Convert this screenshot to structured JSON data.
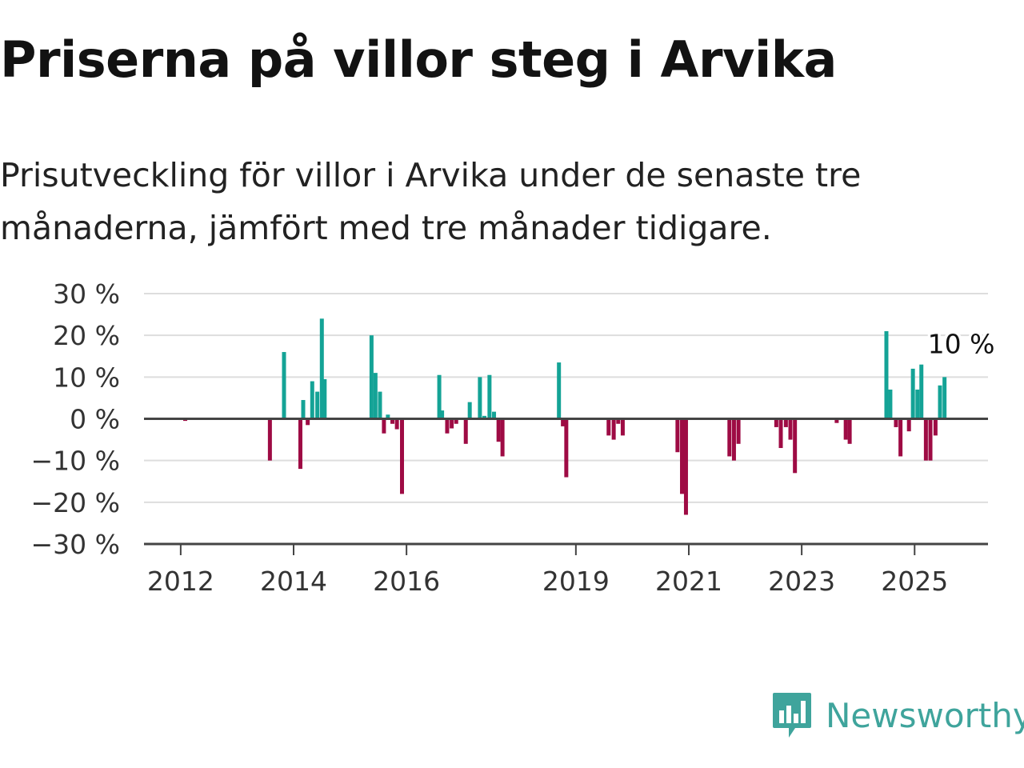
{
  "title": "Priserna på villor steg i Arvika",
  "subtitle": "Prisutveckling för villor i Arvika under de senaste tre månaderna, jämfört med tre månader tidigare.",
  "brand": "Newsworthy",
  "colors": {
    "positive": "#14a396",
    "negative": "#9e0b44",
    "brand": "#3fa49c",
    "axis": "#444444",
    "grid": "#dddddd"
  },
  "chart_data": {
    "type": "bar",
    "ylim": [
      -30,
      30
    ],
    "y_ticks": [
      "30 %",
      "20 %",
      "10 %",
      "0 %",
      "−10 %",
      "−20 %",
      "−30 %"
    ],
    "y_tick_values": [
      30,
      20,
      10,
      0,
      -10,
      -20,
      -30
    ],
    "x_ticks": [
      "2012",
      "2014",
      "2016",
      "2019",
      "2021",
      "2023",
      "2025"
    ],
    "x_tick_values": [
      2012,
      2014,
      2016,
      2019,
      2021,
      2023,
      2025
    ],
    "xlim": [
      2011.35,
      2026.3
    ],
    "grid": true,
    "annotation": {
      "text": "10 %",
      "x": 2025.6,
      "y": 10
    },
    "series": [
      {
        "x": [
          2012.08,
          2013.58,
          2013.83,
          2014.12,
          2014.17,
          2014.25,
          2014.33,
          2014.42,
          2014.5,
          2014.55,
          2014.62,
          2015.38,
          2015.45,
          2015.53,
          2015.6,
          2015.67,
          2015.75,
          2015.83,
          2015.92,
          2016.58,
          2016.63,
          2016.72,
          2016.8,
          2016.88,
          2017.05,
          2017.12,
          2017.3,
          2017.38,
          2017.47,
          2017.55,
          2017.63,
          2017.7,
          2018.7,
          2018.77,
          2018.83,
          2019.58,
          2019.67,
          2019.75,
          2019.83,
          2020.8,
          2020.88,
          2020.95,
          2021.72,
          2021.8,
          2021.88,
          2022.55,
          2022.63,
          2022.72,
          2022.8,
          2022.88,
          2023.62,
          2023.78,
          2023.85,
          2024.5,
          2024.57,
          2024.67,
          2024.75,
          2024.9,
          2024.97,
          2025.05,
          2025.12,
          2025.2,
          2025.28,
          2025.37,
          2025.45,
          2025.53
        ],
        "values": [
          -0.5,
          -10,
          16,
          -12,
          4.5,
          -1.5,
          9,
          6.5,
          24,
          9.5,
          0,
          20,
          11,
          6.5,
          -3.5,
          1,
          -1.2,
          -2.5,
          -18,
          10.5,
          2,
          -3.5,
          -2.3,
          -1.2,
          -6,
          4,
          10,
          0.7,
          10.5,
          1.7,
          -5.5,
          -9,
          13.5,
          -1.8,
          -14,
          -4,
          -5,
          -1.2,
          -4,
          -8,
          -18,
          -23,
          -9,
          -10,
          -6,
          -2,
          -7,
          -2,
          -5,
          -13,
          -1,
          -5,
          -6,
          21,
          7,
          -2,
          -9,
          -3,
          12,
          7,
          13,
          -10,
          -10,
          -4,
          8,
          10
        ]
      }
    ]
  }
}
